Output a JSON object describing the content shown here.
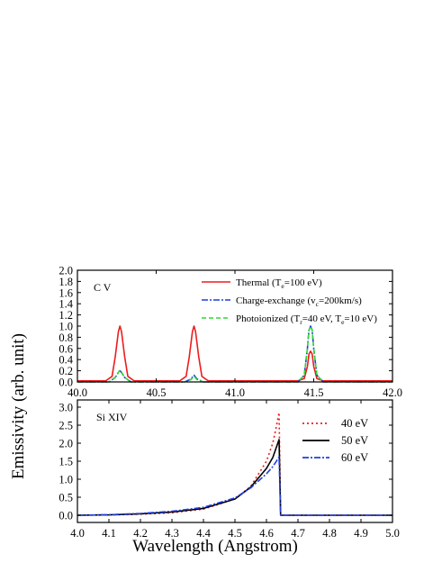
{
  "figure": {
    "ylabel": "Emissivity (arb. unit)",
    "xlabel": "Wavelength (Angstrom)"
  },
  "chart_data": [
    {
      "type": "line",
      "panel_label": "C V",
      "xlim": [
        40.0,
        42.0
      ],
      "ylim": [
        0.0,
        2.0
      ],
      "xticks": [
        "40.0",
        "40.5",
        "41.0",
        "41.5",
        "42.0"
      ],
      "yticks": [
        "0.0",
        "0.2",
        "0.4",
        "0.6",
        "0.8",
        "1.0",
        "1.2",
        "1.4",
        "1.6",
        "1.8",
        "2.0"
      ],
      "legend_position": "top-right",
      "series": [
        {
          "name": "Thermal",
          "legend_parts": [
            "Thermal (T",
            "e",
            "=100 eV)"
          ],
          "color": "#ee1c1c",
          "dash": "solid",
          "x": [
            40.0,
            40.18,
            40.22,
            40.24,
            40.26,
            40.27,
            40.28,
            40.3,
            40.32,
            40.36,
            40.65,
            40.69,
            40.71,
            40.73,
            40.74,
            40.75,
            40.77,
            40.79,
            40.83,
            41.4,
            41.44,
            41.46,
            41.47,
            41.48,
            41.49,
            41.5,
            41.52,
            41.56,
            42.0
          ],
          "y": [
            0.02,
            0.02,
            0.1,
            0.45,
            0.9,
            1.0,
            0.9,
            0.45,
            0.1,
            0.02,
            0.02,
            0.1,
            0.45,
            0.9,
            1.0,
            0.9,
            0.45,
            0.1,
            0.02,
            0.02,
            0.06,
            0.28,
            0.5,
            0.55,
            0.5,
            0.28,
            0.06,
            0.02,
            0.02
          ]
        },
        {
          "name": "Charge-exchange",
          "legend_parts": [
            "Charge-exchange (v",
            "c",
            "=200km/s)"
          ],
          "color": "#1f3fe0",
          "dash": "dashdot",
          "x": [
            40.0,
            40.2,
            40.24,
            40.26,
            40.27,
            40.28,
            40.3,
            40.34,
            40.68,
            40.72,
            40.74,
            40.76,
            40.8,
            41.4,
            41.44,
            41.46,
            41.47,
            41.48,
            41.49,
            41.5,
            41.52,
            41.56,
            42.0
          ],
          "y": [
            0.0,
            0.0,
            0.08,
            0.17,
            0.2,
            0.17,
            0.08,
            0.0,
            0.0,
            0.05,
            0.12,
            0.05,
            0.0,
            0.0,
            0.12,
            0.6,
            0.93,
            1.0,
            0.93,
            0.6,
            0.12,
            0.0,
            0.0
          ]
        },
        {
          "name": "Photoionized",
          "legend_parts": [
            "Photoionized (T",
            "r",
            "=40 eV, T",
            "e",
            "=10 eV)"
          ],
          "color": "#2fd82f",
          "dash": "dashed",
          "x": [
            40.0,
            40.2,
            40.24,
            40.26,
            40.27,
            40.28,
            40.3,
            40.34,
            40.68,
            40.72,
            40.74,
            40.76,
            40.8,
            41.4,
            41.44,
            41.46,
            41.47,
            41.48,
            41.49,
            41.5,
            41.52,
            41.56,
            42.0
          ],
          "y": [
            0.0,
            0.0,
            0.08,
            0.17,
            0.21,
            0.17,
            0.08,
            0.0,
            0.0,
            0.04,
            0.1,
            0.04,
            0.0,
            0.0,
            0.12,
            0.6,
            0.93,
            1.0,
            0.93,
            0.6,
            0.12,
            0.0,
            0.0
          ]
        }
      ]
    },
    {
      "type": "line",
      "panel_label": "Si XIV",
      "xlim": [
        4.0,
        5.0
      ],
      "ylim": [
        -0.2,
        3.2
      ],
      "xticks": [
        "4.0",
        "4.1",
        "4.2",
        "4.3",
        "4.4",
        "4.5",
        "4.6",
        "4.7",
        "4.8",
        "4.9",
        "5.0"
      ],
      "yticks": [
        "0.0",
        "0.5",
        "1.0",
        "1.5",
        "2.0",
        "2.5",
        "3.0"
      ],
      "legend_position": "top-right",
      "series": [
        {
          "name": "40 eV",
          "color": "#ee1c1c",
          "dash": "dotted",
          "x": [
            4.0,
            4.1,
            4.2,
            4.3,
            4.4,
            4.5,
            4.55,
            4.6,
            4.62,
            4.63,
            4.64,
            4.645,
            4.66,
            5.0
          ],
          "y": [
            0.0,
            0.01,
            0.03,
            0.07,
            0.17,
            0.45,
            0.8,
            1.5,
            2.0,
            2.4,
            2.85,
            0.0,
            0.0,
            0.0
          ]
        },
        {
          "name": "50 eV",
          "color": "#000000",
          "dash": "solid",
          "x": [
            4.0,
            4.1,
            4.2,
            4.3,
            4.4,
            4.5,
            4.55,
            4.6,
            4.62,
            4.63,
            4.64,
            4.645,
            4.66,
            5.0
          ],
          "y": [
            0.0,
            0.01,
            0.04,
            0.09,
            0.19,
            0.45,
            0.78,
            1.3,
            1.6,
            1.85,
            2.1,
            0.0,
            0.0,
            0.0
          ]
        },
        {
          "name": "60 eV",
          "color": "#1f3fe0",
          "dash": "dashdot",
          "x": [
            4.0,
            4.1,
            4.2,
            4.3,
            4.4,
            4.5,
            4.55,
            4.6,
            4.62,
            4.63,
            4.64,
            4.645,
            4.66,
            5.0
          ],
          "y": [
            0.0,
            0.015,
            0.05,
            0.11,
            0.22,
            0.48,
            0.76,
            1.15,
            1.35,
            1.48,
            1.62,
            0.0,
            0.0,
            0.0
          ]
        }
      ]
    }
  ]
}
